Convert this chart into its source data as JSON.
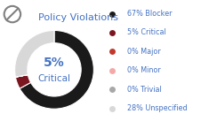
{
  "title": "Policy Violations",
  "center_label_pct": "5%",
  "center_label_name": "Critical",
  "slices": [
    67,
    5,
    0.001,
    0.001,
    0.001,
    28
  ],
  "slice_colors": [
    "#1a1a1a",
    "#7b1520",
    "#c0392b",
    "#f4a9a8",
    "#a8a8a8",
    "#d8d8d8"
  ],
  "legend_labels": [
    "67% Blocker",
    "5% Critical",
    "0% Major",
    "0% Minor",
    "0% Trivial",
    "28% Unspecified"
  ],
  "legend_colors": [
    "#1a1a1a",
    "#7b1520",
    "#c0392b",
    "#f4a9a8",
    "#a8a8a8",
    "#d8d8d8"
  ],
  "bg_color": "#ffffff",
  "title_color": "#4472c4",
  "center_pct_color": "#4472c4",
  "center_name_color": "#4472c4",
  "legend_text_color": "#4472c4",
  "icon_color": "#808080",
  "donut_width": 0.32
}
